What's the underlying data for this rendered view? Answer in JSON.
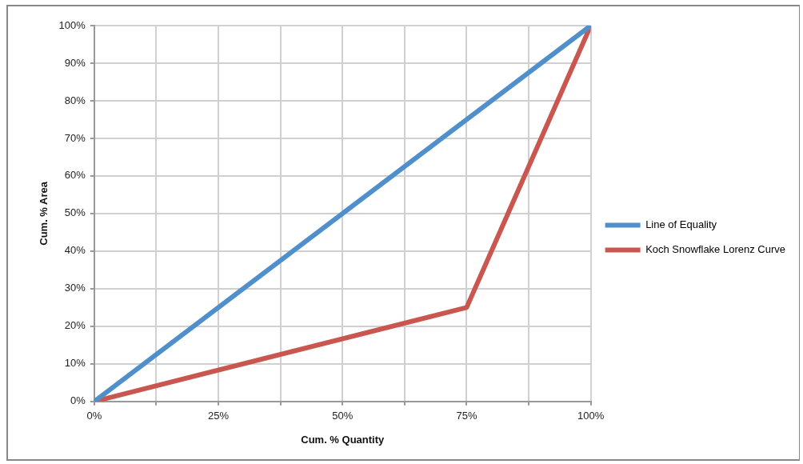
{
  "chart_data": {
    "type": "line",
    "xlabel": "Cum. % Quantity",
    "ylabel": "Cum. % Area",
    "series": [
      {
        "name": "Line of Equality",
        "color": "#4f8fcc",
        "x": [
          0,
          100
        ],
        "values": [
          0,
          100
        ]
      },
      {
        "name": "Koch Snowflake Lorenz Curve",
        "color": "#c9574f",
        "x": [
          0,
          75,
          100
        ],
        "values": [
          0,
          25,
          100
        ]
      }
    ],
    "xlim": [
      0,
      100
    ],
    "xticks": [
      {
        "value": 0,
        "label": "0%"
      },
      {
        "value": 12.5,
        "label": null
      },
      {
        "value": 25,
        "label": "25%"
      },
      {
        "value": 37.5,
        "label": null
      },
      {
        "value": 50,
        "label": "50%"
      },
      {
        "value": 62.5,
        "label": null
      },
      {
        "value": 75,
        "label": "75%"
      },
      {
        "value": 87.5,
        "label": null
      },
      {
        "value": 100,
        "label": "100%"
      }
    ],
    "ylim": [
      0,
      100
    ],
    "yticks": [
      {
        "value": 0,
        "label": "0%"
      },
      {
        "value": 10,
        "label": "10%"
      },
      {
        "value": 20,
        "label": "20%"
      },
      {
        "value": 30,
        "label": "30%"
      },
      {
        "value": 40,
        "label": "40%"
      },
      {
        "value": 50,
        "label": "50%"
      },
      {
        "value": 60,
        "label": "60%"
      },
      {
        "value": 70,
        "label": "70%"
      },
      {
        "value": 80,
        "label": "80%"
      },
      {
        "value": 90,
        "label": "90%"
      },
      {
        "value": 100,
        "label": "100%"
      }
    ],
    "grid": true,
    "legend": "right",
    "marker": "none",
    "line_style": "solid"
  }
}
